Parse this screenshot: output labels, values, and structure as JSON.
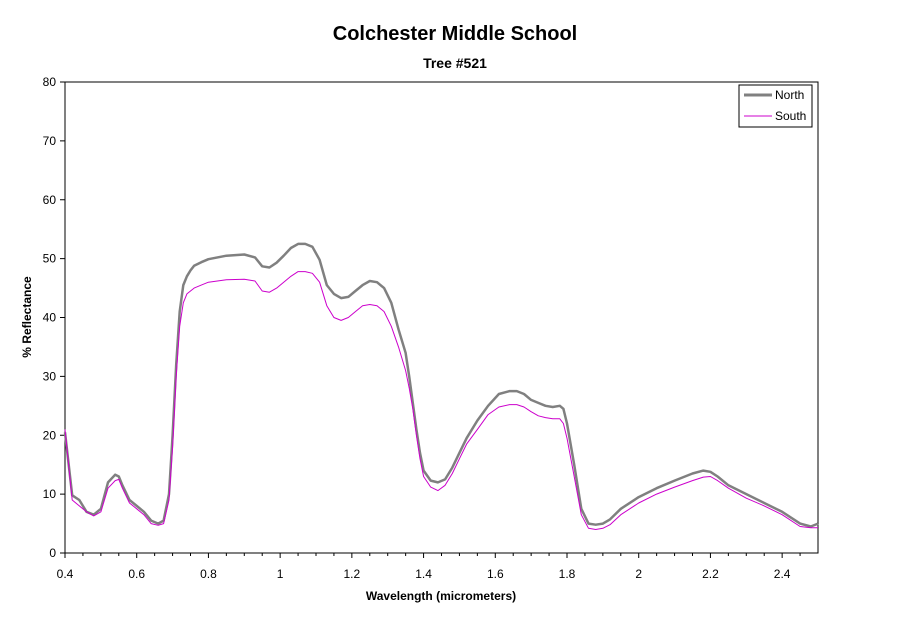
{
  "chart_data": {
    "type": "line",
    "title": "Colchester Middle School",
    "subtitle": "Tree #521",
    "xlabel": "Wavelength (micrometers)",
    "ylabel": "% Reflectance",
    "xlim": [
      0.4,
      2.5
    ],
    "ylim": [
      0,
      80
    ],
    "x_ticks": [
      "0.4",
      "0.6",
      "0.8",
      "1",
      "1.2",
      "1.4",
      "1.6",
      "1.8",
      "2",
      "2.2",
      "2.4"
    ],
    "y_ticks": [
      "0",
      "10",
      "20",
      "30",
      "40",
      "50",
      "60",
      "70",
      "80"
    ],
    "grid": false,
    "legend_position": "top-right",
    "colors": {
      "North": "#808080",
      "South": "#cc00cc"
    },
    "series": [
      {
        "name": "North",
        "x": [
          0.4,
          0.42,
          0.44,
          0.46,
          0.48,
          0.5,
          0.52,
          0.54,
          0.55,
          0.56,
          0.58,
          0.6,
          0.62,
          0.64,
          0.66,
          0.675,
          0.69,
          0.7,
          0.71,
          0.72,
          0.73,
          0.74,
          0.75,
          0.76,
          0.78,
          0.8,
          0.85,
          0.9,
          0.93,
          0.95,
          0.97,
          0.99,
          1.01,
          1.03,
          1.05,
          1.07,
          1.09,
          1.11,
          1.13,
          1.15,
          1.17,
          1.19,
          1.21,
          1.23,
          1.25,
          1.27,
          1.29,
          1.31,
          1.33,
          1.35,
          1.36,
          1.37,
          1.38,
          1.39,
          1.4,
          1.42,
          1.44,
          1.46,
          1.48,
          1.5,
          1.52,
          1.55,
          1.58,
          1.61,
          1.64,
          1.66,
          1.68,
          1.7,
          1.72,
          1.74,
          1.76,
          1.78,
          1.79,
          1.8,
          1.82,
          1.84,
          1.86,
          1.88,
          1.9,
          1.92,
          1.95,
          2.0,
          2.05,
          2.1,
          2.15,
          2.18,
          2.2,
          2.22,
          2.25,
          2.3,
          2.35,
          2.4,
          2.45,
          2.48,
          2.5
        ],
        "y": [
          20.5,
          9.8,
          9.0,
          7.0,
          6.5,
          7.5,
          12.0,
          13.3,
          13.0,
          11.5,
          9.0,
          8.0,
          7.0,
          5.5,
          5.0,
          5.5,
          10.0,
          20.0,
          32.0,
          41.0,
          45.5,
          47.0,
          48.0,
          48.8,
          49.4,
          49.9,
          50.5,
          50.7,
          50.2,
          48.7,
          48.5,
          49.3,
          50.5,
          51.8,
          52.5,
          52.5,
          52.0,
          49.8,
          45.5,
          44.0,
          43.3,
          43.5,
          44.5,
          45.5,
          46.2,
          46.0,
          45.0,
          42.5,
          38.0,
          34.0,
          30.0,
          25.5,
          21.0,
          17.0,
          14.0,
          12.3,
          12.0,
          12.5,
          14.5,
          17.0,
          19.5,
          22.5,
          25.0,
          27.0,
          27.5,
          27.5,
          27.0,
          26.0,
          25.5,
          25.0,
          24.8,
          25.0,
          24.5,
          22.0,
          15.0,
          7.5,
          5.0,
          4.8,
          5.0,
          5.7,
          7.5,
          9.5,
          11.0,
          12.3,
          13.5,
          14.0,
          13.8,
          13.0,
          11.5,
          10.0,
          8.5,
          7.0,
          5.0,
          4.5,
          5.0
        ]
      },
      {
        "name": "South",
        "x": [
          0.4,
          0.42,
          0.44,
          0.46,
          0.48,
          0.5,
          0.52,
          0.54,
          0.55,
          0.56,
          0.58,
          0.6,
          0.62,
          0.64,
          0.66,
          0.675,
          0.69,
          0.7,
          0.71,
          0.72,
          0.73,
          0.74,
          0.75,
          0.76,
          0.78,
          0.8,
          0.85,
          0.9,
          0.93,
          0.95,
          0.97,
          0.99,
          1.01,
          1.03,
          1.05,
          1.07,
          1.09,
          1.11,
          1.13,
          1.15,
          1.17,
          1.19,
          1.21,
          1.23,
          1.25,
          1.27,
          1.29,
          1.31,
          1.33,
          1.35,
          1.36,
          1.37,
          1.38,
          1.39,
          1.4,
          1.42,
          1.44,
          1.46,
          1.48,
          1.5,
          1.52,
          1.55,
          1.58,
          1.61,
          1.64,
          1.66,
          1.68,
          1.7,
          1.72,
          1.74,
          1.76,
          1.78,
          1.79,
          1.8,
          1.82,
          1.84,
          1.86,
          1.88,
          1.9,
          1.92,
          1.95,
          2.0,
          2.05,
          2.1,
          2.15,
          2.18,
          2.2,
          2.22,
          2.25,
          2.3,
          2.35,
          2.4,
          2.45,
          2.48,
          2.5
        ],
        "y": [
          21.0,
          9.0,
          8.0,
          7.0,
          6.3,
          7.0,
          11.0,
          12.3,
          12.5,
          11.0,
          8.5,
          7.5,
          6.5,
          5.0,
          4.7,
          5.0,
          9.0,
          18.0,
          30.0,
          38.5,
          42.5,
          44.0,
          44.5,
          45.0,
          45.5,
          46.0,
          46.4,
          46.5,
          46.2,
          44.5,
          44.3,
          45.0,
          46.0,
          47.0,
          47.8,
          47.8,
          47.5,
          46.0,
          42.0,
          40.0,
          39.5,
          40.0,
          41.0,
          42.0,
          42.2,
          42.0,
          41.0,
          38.5,
          35.0,
          31.0,
          28.0,
          24.5,
          20.0,
          16.0,
          13.0,
          11.2,
          10.6,
          11.5,
          13.5,
          16.0,
          18.5,
          21.0,
          23.5,
          24.8,
          25.2,
          25.2,
          24.8,
          24.0,
          23.3,
          23.0,
          22.8,
          22.8,
          22.0,
          19.5,
          13.0,
          6.5,
          4.2,
          4.0,
          4.2,
          4.8,
          6.5,
          8.5,
          10.0,
          11.2,
          12.3,
          12.9,
          13.0,
          12.3,
          11.0,
          9.3,
          8.0,
          6.5,
          4.5,
          4.3,
          4.3
        ]
      }
    ]
  }
}
